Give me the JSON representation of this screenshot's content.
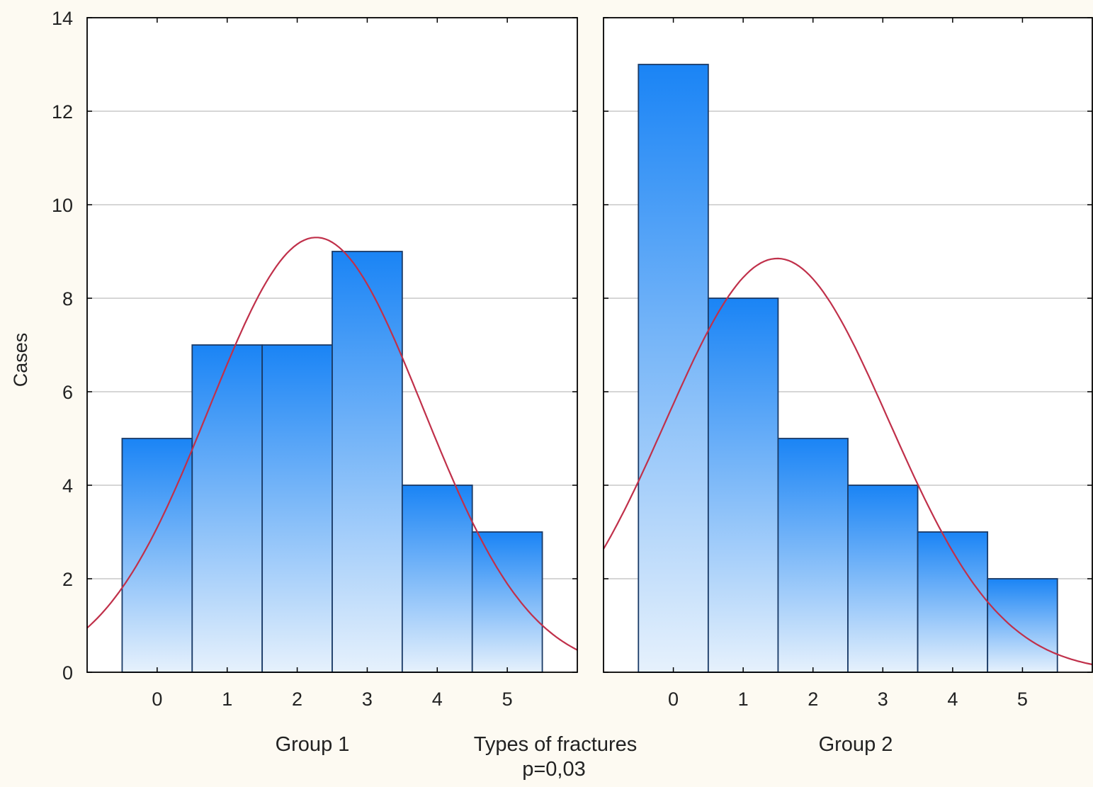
{
  "chart_data": {
    "type": "bar",
    "subtype": "histogram-with-normal-fit",
    "ylabel": "Cases",
    "xlabel": "Types of fractures",
    "note": "p=0,03",
    "ylim": [
      0,
      14
    ],
    "yticks": [
      0,
      2,
      4,
      6,
      8,
      10,
      12,
      14
    ],
    "grid": true,
    "colors": {
      "bar_top": "#1a84f5",
      "bar_bottom": "#e6f1fc",
      "bar_edge": "#1a3a66",
      "curve": "#c0304a",
      "grid": "#c8c8c8"
    },
    "panels": [
      {
        "label": "Group 1",
        "xlim": [
          -1,
          6
        ],
        "categories": [
          "0",
          "1",
          "2",
          "3",
          "4",
          "5"
        ],
        "values": [
          5,
          7,
          7,
          9,
          4,
          3
        ],
        "normal_fit": {
          "mean": 2.27,
          "sd": 1.53,
          "peak": 9.3
        }
      },
      {
        "label": "Group 2",
        "xlim": [
          -1,
          6
        ],
        "categories": [
          "0",
          "1",
          "2",
          "3",
          "4",
          "5"
        ],
        "values": [
          13,
          8,
          5,
          4,
          3,
          2
        ],
        "normal_fit": {
          "mean": 1.49,
          "sd": 1.6,
          "peak": 8.85
        }
      }
    ]
  }
}
